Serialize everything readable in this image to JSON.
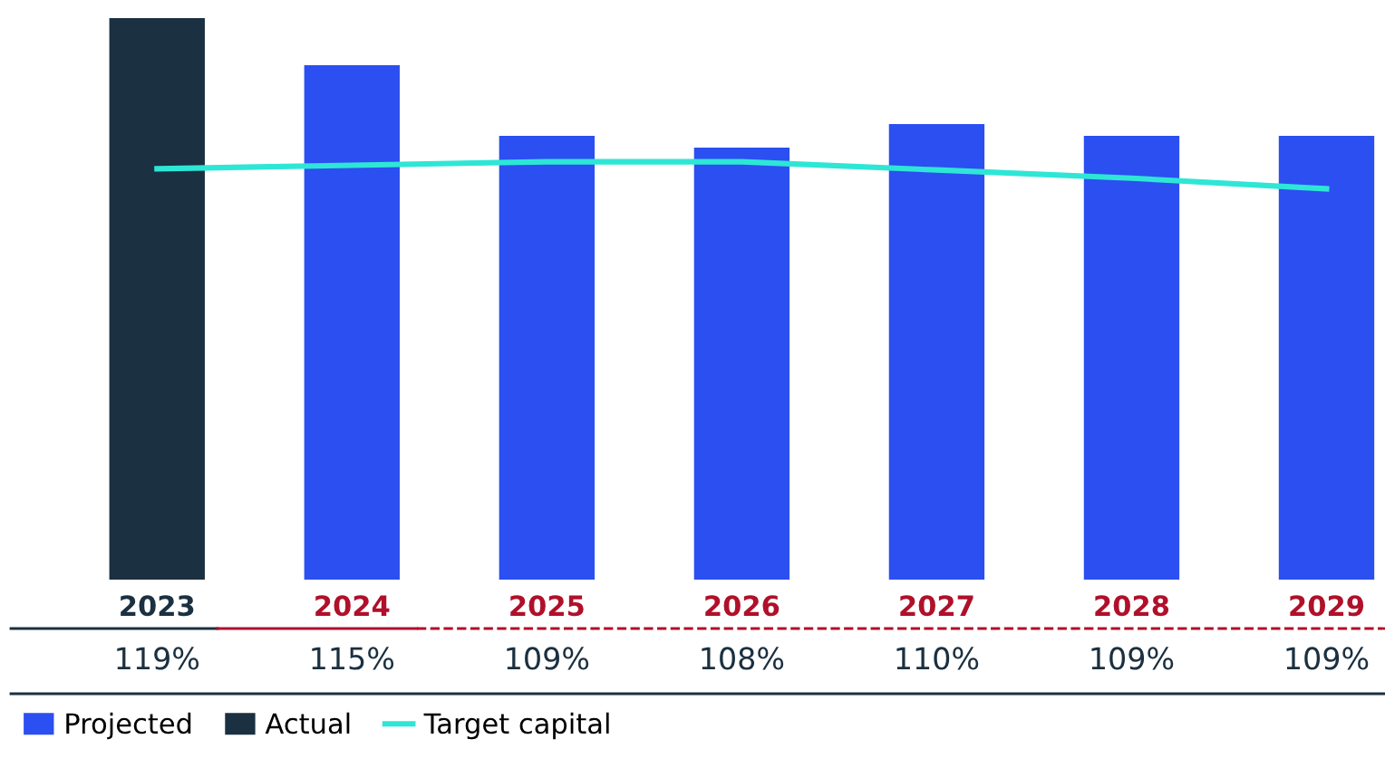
{
  "chart_data": {
    "type": "bar",
    "categories": [
      "2023",
      "2024",
      "2025",
      "2026",
      "2027",
      "2028",
      "2029"
    ],
    "ylim": [
      71.3,
      119
    ],
    "tick_labels": "x",
    "legend": "bottom left",
    "series": [
      {
        "name": "Projected",
        "color": "#2b4ff0",
        "values": [
          null,
          115,
          109,
          108,
          110,
          109,
          109
        ],
        "value_labels": [
          null,
          "115%",
          "109%",
          "108%",
          "110%",
          "109%",
          "109%"
        ]
      },
      {
        "name": "Actual",
        "color": "#1b3040",
        "values": [
          119,
          null,
          null,
          null,
          null,
          null,
          null
        ],
        "value_labels": [
          "119%",
          null,
          null,
          null,
          null,
          null,
          null
        ]
      },
      {
        "name": "Target capital",
        "type": "line",
        "color": "#2ee6d6",
        "values": [
          106.2,
          106.5,
          106.8,
          106.8,
          106.1,
          105.4,
          104.5
        ],
        "marker": "none",
        "line_style": "solid"
      }
    ]
  }
}
